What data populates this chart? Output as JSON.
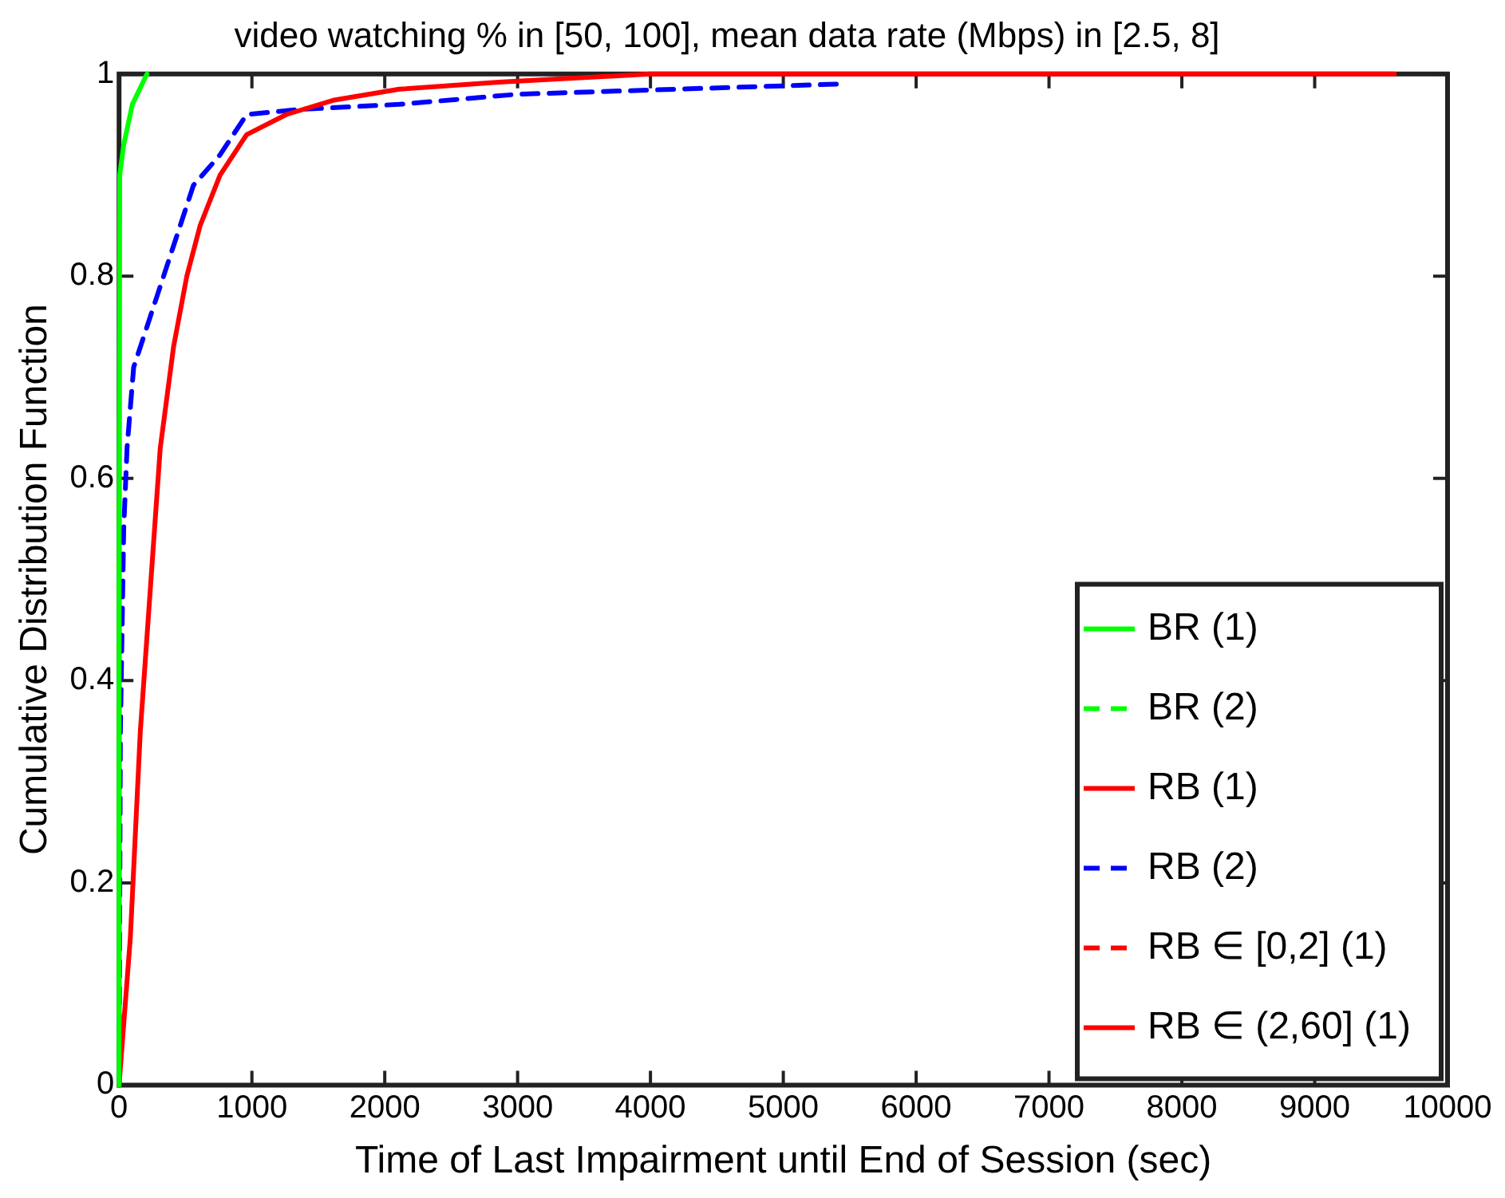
{
  "chart_data": {
    "type": "line",
    "title": "video watching % in [50, 100], mean data rate (Mbps) in [2.5, 8]",
    "xlabel": "Time of Last Impairment until End of Session (sec)",
    "ylabel": "Cumulative Distribution Function",
    "xlim": [
      0,
      10000
    ],
    "xticks": [
      0,
      1000,
      2000,
      3000,
      4000,
      5000,
      6000,
      7000,
      8000,
      9000,
      10000
    ],
    "ylim": [
      0,
      1
    ],
    "yticks": [
      0,
      0.2,
      0.4,
      0.6,
      0.8,
      1
    ],
    "grid": false,
    "legend": "bottom right",
    "marker": "none",
    "series": [
      {
        "name": "BR (1)",
        "color": "#00ff00",
        "line_style": "solid",
        "x": [
          0,
          0,
          5,
          35,
          100,
          210
        ],
        "values": [
          0,
          0.5,
          0.9,
          0.93,
          0.97,
          1
        ]
      },
      {
        "name": "BR (2)",
        "color": "#00ff00",
        "line_style": "dashed"
      },
      {
        "name": "RB (1)",
        "color": "#ff0000",
        "line_style": "solid",
        "x": [
          0,
          85,
          160,
          235,
          310,
          410,
          510,
          610,
          760,
          960,
          1260,
          1610,
          2110,
          2860,
          4000,
          9600
        ],
        "values": [
          0,
          0.146,
          0.35,
          0.49,
          0.63,
          0.73,
          0.8,
          0.85,
          0.9,
          0.94,
          0.96,
          0.974,
          0.985,
          0.992,
          1,
          1
        ]
      },
      {
        "name": "RB (2)",
        "color": "#0000ff",
        "line_style": "dashed",
        "x": [
          0,
          10,
          35,
          60,
          110,
          210,
          360,
          560,
          760,
          960,
          1360,
          2110,
          3000,
          5400
        ],
        "values": [
          0,
          0.35,
          0.55,
          0.63,
          0.71,
          0.75,
          0.81,
          0.89,
          0.92,
          0.96,
          0.965,
          0.97,
          0.98,
          0.99
        ]
      },
      {
        "name": "RB ∈ [0,2] (1)",
        "color": "#ff0000",
        "line_style": "dashed"
      },
      {
        "name": "RB ∈ (2,60] (1)",
        "color": "#ff0000",
        "line_style": "solid"
      }
    ]
  }
}
